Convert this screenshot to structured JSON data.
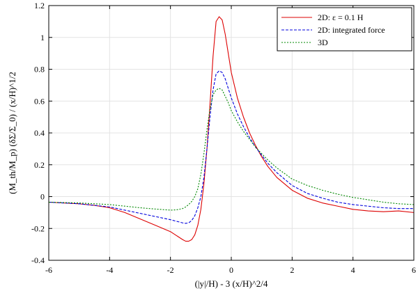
{
  "chart_data": {
    "type": "line",
    "xlabel": "(|y|/H) - 3 (x/H)^2/4",
    "ylabel": "(M_th/M_p) (δΣ/Σ_0) / (x/H)^1/2",
    "xlim": [
      -6,
      6
    ],
    "ylim": [
      -0.4,
      1.2
    ],
    "xticks": [
      -6,
      -4,
      -2,
      0,
      2,
      4,
      6
    ],
    "yticks": [
      -0.4,
      -0.2,
      0,
      0.2,
      0.4,
      0.6,
      0.8,
      1,
      1.2
    ],
    "xtick_labels": [
      "-6",
      "-4",
      "-2",
      "0",
      "2",
      "4",
      "6"
    ],
    "ytick_labels": [
      "-0.4",
      "-0.2",
      "0",
      "0.2",
      "0.4",
      "0.6",
      "0.8",
      "1",
      "1.2"
    ],
    "grid": true,
    "legend_position": "top-right",
    "series": [
      {
        "name": "2D: ε = 0.1 H",
        "color": "#dd0000",
        "dash": "solid",
        "x": [
          -6,
          -5,
          -4.5,
          -4,
          -3.5,
          -3,
          -2.5,
          -2,
          -1.8,
          -1.6,
          -1.5,
          -1.4,
          -1.3,
          -1.2,
          -1.1,
          -1.0,
          -0.9,
          -0.8,
          -0.7,
          -0.6,
          -0.5,
          -0.4,
          -0.3,
          -0.2,
          -0.1,
          0,
          0.2,
          0.4,
          0.6,
          0.8,
          1.0,
          1.2,
          1.5,
          2,
          2.5,
          3,
          3.5,
          4,
          4.5,
          5,
          5.5,
          6
        ],
        "y": [
          -0.035,
          -0.045,
          -0.055,
          -0.07,
          -0.1,
          -0.14,
          -0.18,
          -0.22,
          -0.245,
          -0.27,
          -0.28,
          -0.28,
          -0.27,
          -0.24,
          -0.18,
          -0.08,
          0.08,
          0.3,
          0.58,
          0.88,
          1.1,
          1.13,
          1.11,
          1.02,
          0.9,
          0.78,
          0.62,
          0.5,
          0.4,
          0.32,
          0.25,
          0.19,
          0.12,
          0.04,
          -0.01,
          -0.04,
          -0.06,
          -0.08,
          -0.09,
          -0.095,
          -0.09,
          -0.1
        ]
      },
      {
        "name": "2D: integrated force",
        "color": "#0000dd",
        "dash": "dashed",
        "x": [
          -6,
          -5,
          -4.5,
          -4,
          -3.5,
          -3,
          -2.5,
          -2,
          -1.8,
          -1.6,
          -1.5,
          -1.4,
          -1.3,
          -1.2,
          -1.1,
          -1.0,
          -0.9,
          -0.8,
          -0.7,
          -0.6,
          -0.5,
          -0.4,
          -0.3,
          -0.2,
          -0.1,
          0,
          0.2,
          0.4,
          0.6,
          0.8,
          1.0,
          1.2,
          1.5,
          2,
          2.5,
          3,
          3.5,
          4,
          4.5,
          5,
          5.5,
          6
        ],
        "y": [
          -0.035,
          -0.045,
          -0.055,
          -0.065,
          -0.085,
          -0.105,
          -0.125,
          -0.145,
          -0.155,
          -0.165,
          -0.168,
          -0.165,
          -0.15,
          -0.12,
          -0.07,
          0.0,
          0.12,
          0.3,
          0.5,
          0.67,
          0.77,
          0.79,
          0.78,
          0.74,
          0.68,
          0.62,
          0.52,
          0.44,
          0.37,
          0.31,
          0.26,
          0.21,
          0.15,
          0.07,
          0.02,
          -0.01,
          -0.035,
          -0.05,
          -0.06,
          -0.07,
          -0.075,
          -0.075
        ]
      },
      {
        "name": "3D",
        "color": "#008800",
        "dash": "dotted",
        "x": [
          -6,
          -5,
          -4.5,
          -4,
          -3.5,
          -3,
          -2.5,
          -2,
          -1.8,
          -1.6,
          -1.5,
          -1.4,
          -1.3,
          -1.2,
          -1.1,
          -1.0,
          -0.9,
          -0.8,
          -0.7,
          -0.6,
          -0.5,
          -0.4,
          -0.3,
          -0.2,
          -0.1,
          0,
          0.2,
          0.4,
          0.6,
          0.8,
          1.0,
          1.2,
          1.5,
          2,
          2.5,
          3,
          3.5,
          4,
          4.5,
          5,
          5.5,
          6
        ],
        "y": [
          -0.035,
          -0.04,
          -0.045,
          -0.05,
          -0.06,
          -0.07,
          -0.078,
          -0.085,
          -0.083,
          -0.075,
          -0.065,
          -0.05,
          -0.03,
          0.0,
          0.05,
          0.14,
          0.27,
          0.42,
          0.55,
          0.64,
          0.67,
          0.68,
          0.67,
          0.63,
          0.59,
          0.54,
          0.47,
          0.41,
          0.36,
          0.31,
          0.27,
          0.23,
          0.18,
          0.11,
          0.07,
          0.04,
          0.015,
          -0.005,
          -0.02,
          -0.035,
          -0.045,
          -0.05
        ]
      }
    ]
  }
}
